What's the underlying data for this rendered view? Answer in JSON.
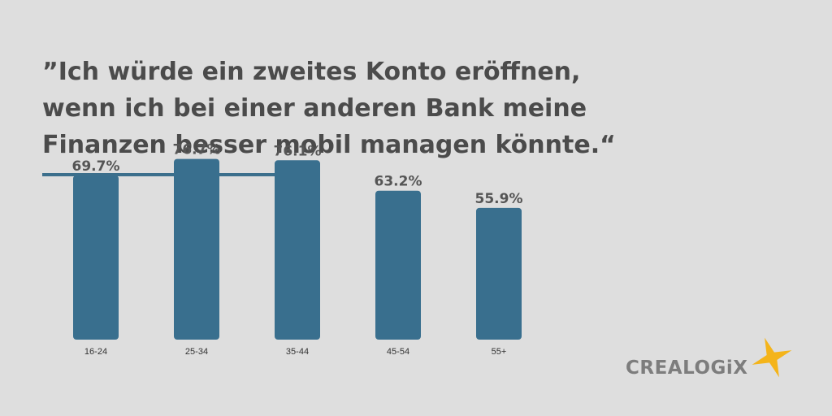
{
  "headline": "”Ich würde ein zweites Konto eröffnen,\nwenn ich bei einer anderen Bank meine\nFinanzen besser mobil managen könnte.“",
  "colors": {
    "background": "#dedede",
    "bar": "#396f8e",
    "accent_rule": "#3c6f8c",
    "headline": "#4b4b4b",
    "logo_text": "#7d7d7d",
    "logo_star": "#f4b41a"
  },
  "chart_data": {
    "type": "bar",
    "categories": [
      "16-24",
      "25-34",
      "35-44",
      "45-54",
      "55+"
    ],
    "values": [
      69.7,
      76.7,
      76.1,
      63.2,
      55.9
    ],
    "value_labels": [
      "69.7%",
      "76.7%",
      "76.1%",
      "63.2%",
      "55.9%"
    ],
    "title": "",
    "xlabel": "",
    "ylabel": "",
    "grid": false,
    "legend": "none"
  },
  "logo": {
    "text": "CREALOGiX",
    "icon": "star-icon"
  }
}
